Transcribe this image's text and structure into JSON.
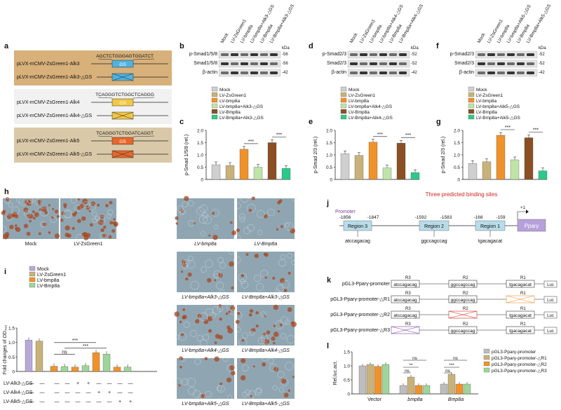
{
  "panels": {
    "a": {
      "label": "a",
      "constructs": [
        {
          "seq": "AGCTCTGGGAGTGGATCT",
          "wt": "pLVX-mCMV-ZsGreen1-",
          "wt_gene": "Alk3",
          "mut": "pLVX-mCMV-ZsGreen1-",
          "mut_gene": "Alk3",
          "mut_suffix": "-△GS",
          "box": "GS",
          "color": "#4fb3e0",
          "bg": "#d7b07a"
        },
        {
          "seq": "TCAGGGTCTGGCTCAGGG",
          "wt": "pLVX-mCMV-ZsGreen1-",
          "wt_gene": "Alk4",
          "mut": "pLVX-mCMV-ZsGreen1-",
          "mut_gene": "Alk4",
          "mut_suffix": "-△GS",
          "box": "GS",
          "color": "#f2c744",
          "bg": "#f1f1f1"
        },
        {
          "seq": "TCAGGGTCTGGATCAGGT",
          "wt": "pLVX-mCMV-ZsGreen1-",
          "wt_gene": "Alk5",
          "mut": "pLVX-mCMV-ZsGreen1-",
          "mut_gene": "Alk5",
          "mut_suffix": "-△GS",
          "box": "GS",
          "color": "#e8662a",
          "bg": "#d9c9a8"
        }
      ]
    },
    "b": {
      "label": "b",
      "lanes": [
        "Mock",
        "LV-ZsGreen1",
        "LV-bmp8a",
        "LV-bmp8a+Alk3-△GS",
        "LV-Bmp8a",
        "LV-Bmp8a+Alk3-△GS"
      ],
      "kda": "kDa",
      "rows": [
        {
          "name": "p-Smad1/5/8",
          "kda": "-56"
        },
        {
          "name": "Smad1/5/8",
          "kda": "-56"
        },
        {
          "name": "β-actin",
          "kda": "-42"
        }
      ]
    },
    "d": {
      "label": "d",
      "lanes": [
        "Mock",
        "LV-ZsGreen1",
        "LV-bmp8a",
        "LV-bmp8a+Alk4-△GS",
        "LV-Bmp8a",
        "LV-Bmp8a+Alk4-△GS"
      ],
      "kda": "kDa",
      "rows": [
        {
          "name": "p-Smad2/3",
          "kda": "-52"
        },
        {
          "name": "Smad2/3",
          "kda": "-52"
        },
        {
          "name": "β-actin",
          "kda": "-42"
        }
      ]
    },
    "f": {
      "label": "f",
      "lanes": [
        "Mock",
        "LV-ZsGreen1",
        "LV-bmp8a",
        "LV-bmp8a+Alk5-△GS",
        "LV-Bmp8a",
        "LV-Bmp8a+Alk5-△GS"
      ],
      "kda": "kDa",
      "rows": [
        {
          "name": "p-Smad2/3",
          "kda": "-52"
        },
        {
          "name": "Smad2/3",
          "kda": "-52"
        },
        {
          "name": "β-actin",
          "kda": "-42"
        }
      ]
    },
    "h": {
      "label": "h",
      "images": [
        "Mock",
        "LV-ZsGreen1",
        "LV-bmp8a",
        "LV-Bmp8a",
        "LV-bmp8a+Alk3-△GS",
        "LV-Bmp8a+Alk3-△GS",
        "LV-bmp8a+Alk4-△GS",
        "LV-Bmp8a+Alk4-△GS",
        "LV-bmp8a+Alk5-△GS",
        "LV-Bmp8a+Alk5-△GS"
      ]
    },
    "j": {
      "label": "j",
      "title": "Three predicted binding sites",
      "promoter": "Promoter",
      "gene": "Pparγ",
      "tss": "+1",
      "coords": [
        "-1856",
        "-1847",
        "-1592",
        "-1583",
        "-168",
        "-159"
      ],
      "regions": [
        {
          "name": "Region 3",
          "seq": "atccagacag"
        },
        {
          "name": "Region 2",
          "seq": "ggccagccag"
        },
        {
          "name": "Region 1",
          "seq": "tgacagacat"
        }
      ]
    },
    "k": {
      "label": "k",
      "constructs": [
        "pGL3-Pparγ-promoter",
        "pGL3-Pparγ-promoter-△R1",
        "pGL3-Pparγ-promoter-△R2",
        "pGL3-Pparγ-promoter-△R3"
      ],
      "r_labels": [
        "R3",
        "R2",
        "R1"
      ],
      "seqs": [
        "atccagacag",
        "ggccagccag",
        "tgacagacat"
      ],
      "luc": "Luc"
    },
    "i": {
      "label": "i",
      "row_labels": [
        "LV-Alk3-△GS",
        "LV-Alk4-△GS",
        "LV-Alk5-△GS"
      ],
      "signs": [
        [
          "—",
          "—",
          "—",
          "—",
          "+",
          "+",
          "—",
          "—",
          "—",
          "—"
        ],
        [
          "—",
          "—",
          "—",
          "—",
          "—",
          "—",
          "+",
          "+",
          "—",
          "—"
        ],
        [
          "—",
          "—",
          "—",
          "—",
          "—",
          "—",
          "—",
          "—",
          "+",
          "+"
        ]
      ]
    }
  },
  "chart_data": [
    {
      "id": "c",
      "type": "bar",
      "ylabel": "p-Smad 1/5/8 (rel.)",
      "ylim": [
        0,
        2.0
      ],
      "yticks": [
        "0",
        "0.5",
        "1.0",
        "1.5",
        "2.0"
      ],
      "legend": [
        "Mock",
        "LV-ZsGreen1",
        "LV-bmp8a",
        "LV-bmp8a+Alk3-△GS",
        "LV-Bmp8a",
        "LV-Bmp8a+Alk3-△GS"
      ],
      "colors": [
        "#cfcfcf",
        "#c8b27a",
        "#f0922a",
        "#bfe4a8",
        "#8a4f22",
        "#2cc98a"
      ],
      "values": [
        0.6,
        0.57,
        1.23,
        0.5,
        1.5,
        0.45
      ],
      "sig": [
        "***",
        "***"
      ]
    },
    {
      "id": "e",
      "type": "bar",
      "ylabel": "p-Smad 2/3 (rel.)",
      "ylim": [
        0,
        2.0
      ],
      "yticks": [
        "0",
        "0.5",
        "1.0",
        "1.5",
        "2.0"
      ],
      "legend": [
        "Mock",
        "LV-ZsGreen1",
        "LV-bmp8a",
        "LV-bmp8a+Alk4-△GS",
        "LV-Bmp8a",
        "LV-Bmp8a+Alk4-△GS"
      ],
      "colors": [
        "#cfcfcf",
        "#c8b27a",
        "#f0922a",
        "#bfe4a8",
        "#8a4f22",
        "#2cc98a"
      ],
      "values": [
        1.05,
        0.98,
        1.52,
        0.47,
        1.48,
        0.28
      ],
      "sig": [
        "***",
        "***"
      ]
    },
    {
      "id": "g",
      "type": "bar",
      "ylabel": "p-Smad 2/3 (rel.)",
      "ylim": [
        0,
        2.0
      ],
      "yticks": [
        "0",
        "0.5",
        "1.0",
        "1.5",
        "2.0"
      ],
      "legend": [
        "Mock",
        "LV-ZsGreen1",
        "LV-bmp8a",
        "LV-bmp8a+Alk5-△GS",
        "LV-Bmp8a",
        "LV-Bmp8a+Alk5-△GS"
      ],
      "colors": [
        "#cfcfcf",
        "#c8b27a",
        "#f0922a",
        "#bfe4a8",
        "#8a4f22",
        "#2cc98a"
      ],
      "values": [
        0.65,
        0.72,
        1.8,
        0.8,
        1.7,
        0.35
      ],
      "sig": [
        "***",
        "***"
      ]
    },
    {
      "id": "i",
      "type": "bar",
      "ylabel": "Fold changes of OD₄₉₂",
      "ylim": [
        0,
        1.5
      ],
      "yticks": [
        "0",
        "0.5",
        "1.0",
        "1.5"
      ],
      "legend": [
        "Mock",
        "LV-ZsGreen1",
        "LV-bmp8a",
        "LV-Bmp8a"
      ],
      "colors": [
        "#b8a9d9",
        "#c8b27a",
        "#f0922a",
        "#9fd49a"
      ],
      "bar_colors": [
        "#b8a9d9",
        "#c8b27a",
        "#f0922a",
        "#9fd49a",
        "#f0922a",
        "#9fd49a",
        "#f0922a",
        "#9fd49a",
        "#f0922a",
        "#9fd49a"
      ],
      "values": [
        1.08,
        1.05,
        0.18,
        0.17,
        0.15,
        0.2,
        0.65,
        0.6,
        0.15,
        0.15
      ],
      "sig": [
        "ns",
        "***",
        "***"
      ]
    },
    {
      "id": "l",
      "type": "bar",
      "ylabel": "Rel.luc.act.",
      "ylim": [
        0,
        1.5
      ],
      "yticks": [
        "0",
        "0.5",
        "1.0",
        "1.5"
      ],
      "categories": [
        "Vector",
        "bmp8a",
        "Bmp8a"
      ],
      "legend": [
        "pGL3-Pparγ-promoter",
        "pGL3-Pparγ-promoter-△R1",
        "pGL3-Pparγ-promoter-△R2",
        "pGL3-Pparγ-promoter-△R3"
      ],
      "colors": [
        "#bdbdbd",
        "#c8b27a",
        "#f0922a",
        "#9fd49a"
      ],
      "series": [
        {
          "values": [
            1.0,
            0.3,
            0.35
          ]
        },
        {
          "values": [
            1.05,
            0.6,
            0.7
          ]
        },
        {
          "values": [
            0.98,
            0.3,
            0.35
          ]
        },
        {
          "values": [
            1.05,
            0.3,
            0.35
          ]
        }
      ],
      "sig": [
        "ns",
        "**",
        "ns",
        "ns",
        "***",
        "ns"
      ]
    }
  ]
}
